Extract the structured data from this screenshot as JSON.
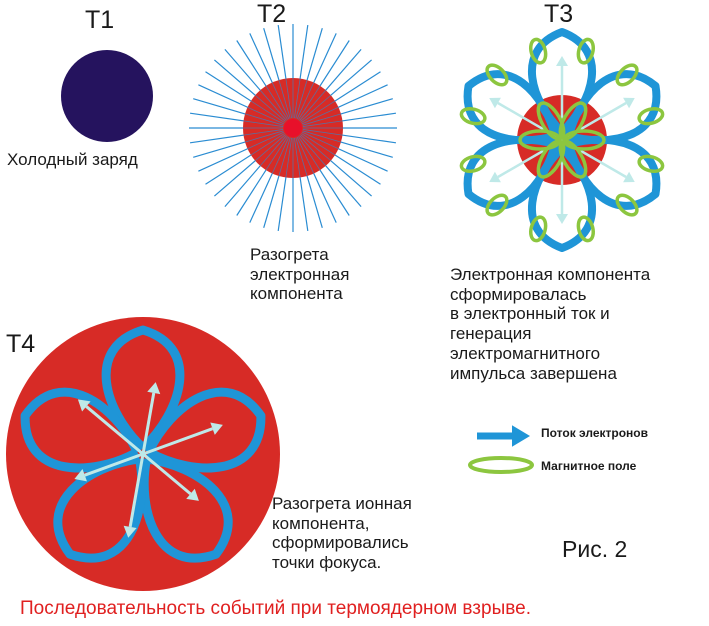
{
  "colors": {
    "cold_charge": "#25135e",
    "hot_core": "#d72b26",
    "core_center": "#e8102a",
    "rays": "#2a8cd2",
    "electron_flow": "#1f95d7",
    "electron_arrows": "#bfe9e8",
    "magnetic_field": "#8cc63f",
    "footer_text": "#e02020"
  },
  "stages": {
    "t1": {
      "title": "T1",
      "caption": "Холодный заряд"
    },
    "t2": {
      "title": "T2",
      "caption": "Разогрета\nэлектронная\nкомпонента"
    },
    "t3": {
      "title": "T3",
      "caption": "Электронная компонента\nсформировалась\nв электронный ток и\nгенерация\nэлектромагнитного\nимпульса завершена"
    },
    "t4": {
      "title": "T4",
      "caption": "Разогрета ионная\nкомпонента,\nсформировались\nточки фокуса."
    }
  },
  "legend": {
    "electron_flow": "Поток электронов",
    "magnetic_field": "Магнитное поле"
  },
  "figure_label": "Рис. 2",
  "footer": "Последовательность событий при термоядерном взрыве.",
  "icons": [
    "charge-circle",
    "ray-burst",
    "electron-loop",
    "magnetic-ring",
    "flow-arrow"
  ]
}
